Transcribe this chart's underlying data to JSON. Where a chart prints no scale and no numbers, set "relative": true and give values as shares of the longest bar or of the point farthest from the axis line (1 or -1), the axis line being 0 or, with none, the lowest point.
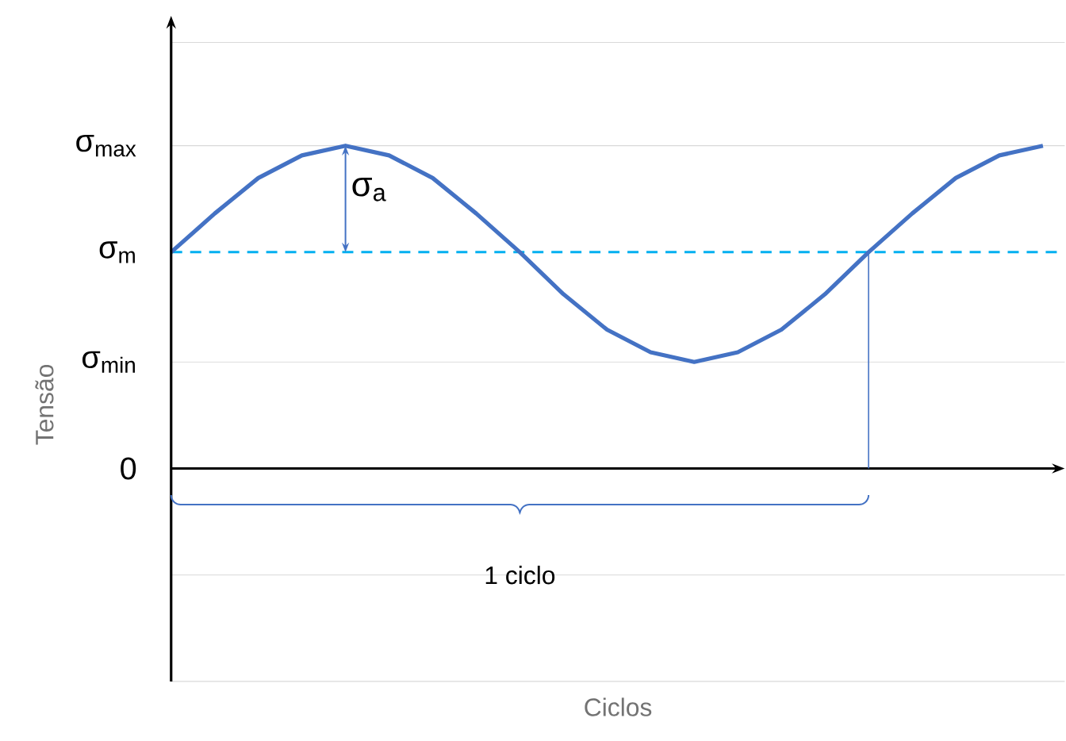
{
  "chart_data": {
    "type": "line",
    "ylabel": "Tensão",
    "relative": true,
    "categories": [
      null,
      null,
      null,
      null,
      null,
      null,
      null,
      null,
      null,
      null,
      null,
      null,
      null,
      null,
      null,
      null,
      null,
      null,
      null,
      null,
      null
    ],
    "series": [
      {
        "color": "#4472c4",
        "values": [
          0.67,
          0.79,
          0.9,
          0.97,
          1,
          0.97,
          0.9,
          0.79,
          0.67,
          0.54,
          0.43,
          0.36,
          0.33,
          0.36,
          0.43,
          0.54,
          0.67,
          0.79,
          0.9,
          0.97,
          1
        ]
      }
    ],
    "marker": "none",
    "line_style": "solid",
    "ref_lines": [
      {
        "axis": "y",
        "value": 0.67,
        "color": "#00b0f0",
        "line_style": "dashed"
      },
      {
        "axis": "y",
        "value": 1,
        "color": "#d9d9d9",
        "line_style": "solid"
      },
      {
        "axis": "y",
        "value": 0.33,
        "color": "#d9d9d9",
        "line_style": "solid"
      }
    ],
    "annotations": [
      "σ$_{max}$",
      "σ$_{m}$",
      "σ$_{min}$",
      "0",
      "σ$_{a}$",
      "1 ciclo",
      "Ciclos"
    ]
  }
}
